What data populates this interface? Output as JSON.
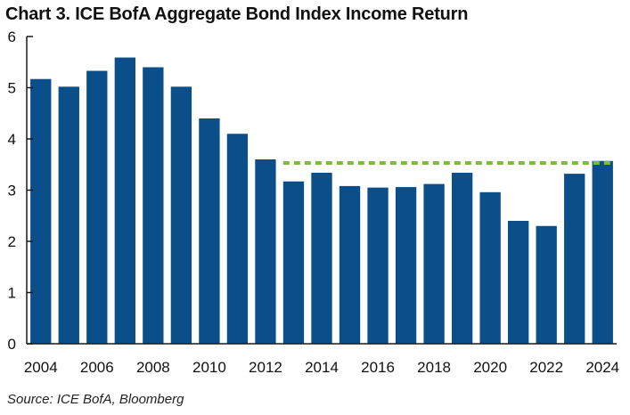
{
  "chart_data": {
    "type": "bar",
    "title": "Chart 3. ICE BofA Aggregate Bond Index Income Return",
    "source": "Source: ICE BofA, Bloomberg",
    "categories": [
      "2004",
      "2005",
      "2006",
      "2007",
      "2008",
      "2009",
      "2010",
      "2011",
      "2012",
      "2013",
      "2014",
      "2015",
      "2016",
      "2017",
      "2018",
      "2019",
      "2020",
      "2021",
      "2022",
      "2023",
      "2024"
    ],
    "x_tick_labels": [
      "2004",
      "2006",
      "2008",
      "2010",
      "2012",
      "2014",
      "2016",
      "2018",
      "2020",
      "2022",
      "2024"
    ],
    "values": [
      5.17,
      5.02,
      5.33,
      5.59,
      5.4,
      5.02,
      4.4,
      4.1,
      3.6,
      3.17,
      3.34,
      3.08,
      3.05,
      3.06,
      3.12,
      3.34,
      2.96,
      2.4,
      2.3,
      3.32,
      3.57
    ],
    "y_ticks": [
      0,
      1,
      2,
      3,
      4,
      5,
      6
    ],
    "ylim": [
      0,
      6
    ],
    "reference_line": {
      "value": 3.53,
      "from": "2013",
      "to": "2024",
      "style": "dashed"
    },
    "xlabel": "",
    "ylabel": "",
    "grid": false,
    "colors": {
      "bar": "#0B4F8A",
      "reference_line": "#7DB747",
      "axis": "#1a1a1a"
    }
  }
}
